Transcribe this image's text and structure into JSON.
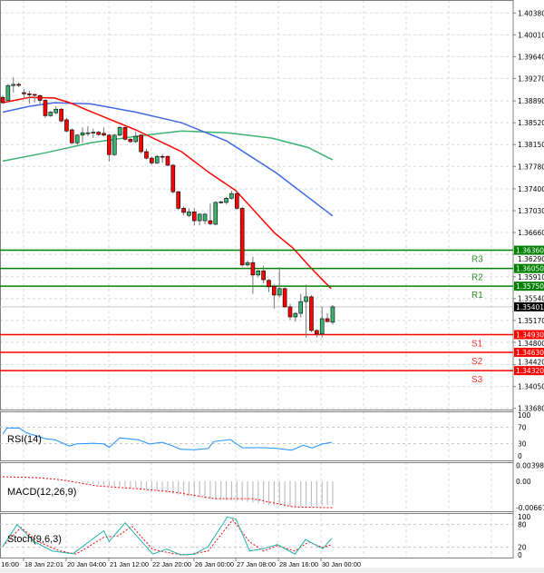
{
  "chart_data": {
    "type": "candlestick",
    "ylim": [
      1.3366,
      1.406
    ],
    "y_ticks": [
      "1.40380",
      "1.40010",
      "1.39640",
      "1.39270",
      "1.38890",
      "1.38520",
      "1.38150",
      "1.37780",
      "1.37400",
      "1.37030",
      "1.36660",
      "1.36290",
      "1.35910",
      "1.35540",
      "1.35170",
      "1.34800",
      "1.34420",
      "1.34050",
      "1.33680"
    ],
    "x_ticks": [
      "16:00",
      "18 Jan 22:01",
      "20 Jan 04:00",
      "21 Jan 12:00",
      "22 Jan 20:00",
      "26 Jan 00:00",
      "27 Jan 08:00",
      "28 Jan 16:00",
      "30 Jan 00:00"
    ],
    "grid": true,
    "colors": {
      "bull": "#3cb371",
      "bear": "#ff0000",
      "ma_fast": "#ff0000",
      "ma_mid": "#4169e1",
      "ma_slow": "#3cb371",
      "resistance": "#008000",
      "support": "#ff0000",
      "rsi": "#1e90ff",
      "macd_signal": "#ff0000",
      "macd_hist": "#c0c0c0",
      "stoch_main": "#20b2aa",
      "stoch_signal": "#ff0000"
    },
    "candles_ohlc": [
      [
        1.3895,
        1.3898,
        1.3884,
        1.3886
      ],
      [
        1.389,
        1.3918,
        1.3886,
        1.3915
      ],
      [
        1.3915,
        1.3929,
        1.3903,
        1.3917
      ],
      [
        1.3917,
        1.392,
        1.3912,
        1.3916
      ],
      [
        1.3903,
        1.3909,
        1.3892,
        1.3901
      ],
      [
        1.3901,
        1.3906,
        1.3884,
        1.39
      ],
      [
        1.39,
        1.3901,
        1.3886,
        1.3899
      ],
      [
        1.3898,
        1.39,
        1.3884,
        1.389
      ],
      [
        1.389,
        1.3892,
        1.386,
        1.3864
      ],
      [
        1.3864,
        1.3872,
        1.3862,
        1.387
      ],
      [
        1.3869,
        1.388,
        1.3866,
        1.3875
      ],
      [
        1.3875,
        1.3877,
        1.3853,
        1.3855
      ],
      [
        1.3857,
        1.386,
        1.3836,
        1.3838
      ],
      [
        1.384,
        1.3842,
        1.3816,
        1.3818
      ],
      [
        1.3818,
        1.3833,
        1.3815,
        1.3831
      ],
      [
        1.3831,
        1.3844,
        1.3818,
        1.3835
      ],
      [
        1.3835,
        1.3846,
        1.3829,
        1.3835
      ],
      [
        1.3835,
        1.3842,
        1.3826,
        1.3836
      ],
      [
        1.3836,
        1.3838,
        1.383,
        1.3832
      ],
      [
        1.3834,
        1.3844,
        1.3829,
        1.3831
      ],
      [
        1.3831,
        1.3833,
        1.3786,
        1.3798
      ],
      [
        1.3798,
        1.3833,
        1.3796,
        1.3831
      ],
      [
        1.3831,
        1.3846,
        1.3829,
        1.3844
      ],
      [
        1.3844,
        1.3846,
        1.3822,
        1.3824
      ],
      [
        1.3824,
        1.3826,
        1.3818,
        1.382
      ],
      [
        1.382,
        1.3837,
        1.3818,
        1.3829
      ],
      [
        1.3831,
        1.3833,
        1.38,
        1.3803
      ],
      [
        1.3803,
        1.3808,
        1.379,
        1.3792
      ],
      [
        1.3792,
        1.3795,
        1.3781,
        1.3784
      ],
      [
        1.3784,
        1.3797,
        1.3782,
        1.3795
      ],
      [
        1.3795,
        1.3799,
        1.3784,
        1.3794
      ],
      [
        1.3795,
        1.3797,
        1.3778,
        1.378
      ],
      [
        1.378,
        1.3782,
        1.3732,
        1.3735
      ],
      [
        1.3735,
        1.3737,
        1.3704,
        1.3707
      ],
      [
        1.3707,
        1.371,
        1.3695,
        1.37
      ],
      [
        1.3695,
        1.3707,
        1.3692,
        1.3701
      ],
      [
        1.3701,
        1.3707,
        1.3678,
        1.3686
      ],
      [
        1.3686,
        1.3699,
        1.3678,
        1.3697
      ],
      [
        1.3686,
        1.3699,
        1.368,
        1.3697
      ],
      [
        1.3686,
        1.3715,
        1.3678,
        1.3681
      ],
      [
        1.368,
        1.3719,
        1.3678,
        1.3717
      ],
      [
        1.3717,
        1.372,
        1.3715,
        1.3718
      ],
      [
        1.3717,
        1.3726,
        1.3714,
        1.3724
      ],
      [
        1.3724,
        1.3737,
        1.3722,
        1.3732
      ],
      [
        1.3732,
        1.3735,
        1.3705,
        1.3707
      ],
      [
        1.3707,
        1.3709,
        1.3608,
        1.3611
      ],
      [
        1.3611,
        1.3618,
        1.3608,
        1.3615
      ],
      [
        1.3615,
        1.3625,
        1.3562,
        1.3594
      ],
      [
        1.3594,
        1.3603,
        1.359,
        1.3601
      ],
      [
        1.3601,
        1.361,
        1.358,
        1.3586
      ],
      [
        1.3585,
        1.3587,
        1.3565,
        1.3574
      ],
      [
        1.3575,
        1.3578,
        1.3537,
        1.356
      ],
      [
        1.356,
        1.3607,
        1.3556,
        1.3571
      ],
      [
        1.3571,
        1.3573,
        1.3538,
        1.354
      ],
      [
        1.354,
        1.3545,
        1.3518,
        1.3523
      ],
      [
        1.3523,
        1.3531,
        1.3515,
        1.3529
      ],
      [
        1.3529,
        1.3562,
        1.3522,
        1.3549
      ],
      [
        1.3549,
        1.3578,
        1.3488,
        1.3557
      ],
      [
        1.3557,
        1.356,
        1.3497,
        1.35
      ],
      [
        1.35,
        1.3502,
        1.3488,
        1.3494
      ],
      [
        1.3494,
        1.354,
        1.3488,
        1.352
      ],
      [
        1.352,
        1.3529,
        1.3514,
        1.3515
      ],
      [
        1.3514,
        1.3543,
        1.351,
        1.354
      ]
    ],
    "moving_averages": {
      "fast": [
        [
          0,
          1.3886
        ],
        [
          5.1,
          1.3895
        ],
        [
          9.7,
          1.3894
        ],
        [
          12.6,
          1.3886
        ],
        [
          16.5,
          1.3871
        ],
        [
          25,
          1.384
        ],
        [
          33.6,
          1.3803
        ],
        [
          38.7,
          1.3768
        ],
        [
          43.8,
          1.3737
        ],
        [
          51.1,
          1.3665
        ],
        [
          54.5,
          1.364
        ],
        [
          57.9,
          1.3606
        ],
        [
          61.7,
          1.3571
        ]
      ],
      "mid": [
        [
          0,
          1.387
        ],
        [
          5.1,
          1.388
        ],
        [
          9.7,
          1.3886
        ],
        [
          16.5,
          1.3884
        ],
        [
          25,
          1.387
        ],
        [
          33.6,
          1.3852
        ],
        [
          42.1,
          1.3821
        ],
        [
          51.4,
          1.3767
        ],
        [
          62,
          1.3694
        ]
      ],
      "slow": [
        [
          0,
          1.3787
        ],
        [
          8,
          1.3801
        ],
        [
          16.5,
          1.3818
        ],
        [
          25,
          1.3829
        ],
        [
          33.6,
          1.3838
        ],
        [
          42.1,
          1.3835
        ],
        [
          50.6,
          1.3826
        ],
        [
          57.4,
          1.381
        ],
        [
          62,
          1.3789
        ]
      ]
    },
    "pivots": [
      {
        "label": "R3",
        "value": 1.3636,
        "tag": "1.36360",
        "kind": "resistance"
      },
      {
        "label": "R2",
        "value": 1.3605,
        "tag": "1.36050",
        "kind": "resistance"
      },
      {
        "label": "R1",
        "value": 1.3575,
        "tag": "1.35750",
        "kind": "resistance"
      },
      {
        "label": "S1",
        "value": 1.3493,
        "tag": "1.34930",
        "kind": "support"
      },
      {
        "label": "S2",
        "value": 1.3463,
        "tag": "1.34630",
        "kind": "support"
      },
      {
        "label": "S3",
        "value": 1.3432,
        "tag": "1.34320",
        "kind": "support"
      }
    ],
    "last_price": {
      "value": 1.35401,
      "tag": "1.35401"
    },
    "rsi": {
      "label": "RSI(14)",
      "ticks": [
        "100",
        "70",
        "30",
        "0"
      ],
      "levels": [
        70,
        30
      ],
      "points": [
        [
          0,
          53
        ],
        [
          0.8,
          68
        ],
        [
          3.1,
          68
        ],
        [
          4.4,
          57
        ],
        [
          8,
          42
        ],
        [
          9.9,
          39
        ],
        [
          12.5,
          24
        ],
        [
          13.8,
          29
        ],
        [
          17,
          31
        ],
        [
          19,
          29
        ],
        [
          20,
          21
        ],
        [
          22,
          44
        ],
        [
          25.6,
          39
        ],
        [
          27.5,
          29
        ],
        [
          30,
          33
        ],
        [
          32,
          24
        ],
        [
          33.4,
          16
        ],
        [
          36,
          15
        ],
        [
          38.6,
          18
        ],
        [
          39.6,
          35
        ],
        [
          42.8,
          40
        ],
        [
          45,
          20
        ],
        [
          49,
          20
        ],
        [
          51.6,
          18
        ],
        [
          54.3,
          14
        ],
        [
          56.5,
          26
        ],
        [
          58.1,
          19
        ],
        [
          60.1,
          29
        ],
        [
          61.8,
          33
        ]
      ]
    },
    "macd": {
      "label": "MACD(12,26,9)",
      "ticks": [
        "0.003981",
        "0.00",
        "-0.006679"
      ],
      "histogram": [
        [
          13,
          0
        ],
        [
          19,
          -0.001
        ],
        [
          27,
          -0.002
        ],
        [
          33.4,
          -0.0035
        ],
        [
          38.6,
          -0.0045
        ],
        [
          45,
          -0.005
        ],
        [
          50,
          -0.006
        ],
        [
          55.5,
          -0.0065
        ],
        [
          62,
          -0.006
        ]
      ],
      "signal": [
        [
          0,
          0.00115
        ],
        [
          6.7,
          0.00092
        ],
        [
          11,
          0.00038
        ],
        [
          17.6,
          -0.00115
        ],
        [
          25.4,
          -0.00192
        ],
        [
          32,
          -0.0027
        ],
        [
          39.8,
          -0.0044
        ],
        [
          46.9,
          -0.0044
        ],
        [
          54.6,
          -0.0065
        ],
        [
          62,
          -0.0067
        ]
      ]
    },
    "stochastic": {
      "label": "Stoch(9,6,3)",
      "ticks": [
        "100",
        "80",
        "20",
        "0"
      ],
      "levels": [
        80,
        20
      ],
      "main": [
        [
          0,
          22
        ],
        [
          2.7,
          79
        ],
        [
          6,
          34
        ],
        [
          9.3,
          10
        ],
        [
          13.2,
          3
        ],
        [
          19,
          63
        ],
        [
          20,
          35
        ],
        [
          23,
          84
        ],
        [
          28.2,
          2
        ],
        [
          30.8,
          15
        ],
        [
          33.4,
          0
        ],
        [
          36,
          2
        ],
        [
          38.6,
          22
        ],
        [
          42.2,
          99
        ],
        [
          43.8,
          94
        ],
        [
          46.4,
          10
        ],
        [
          49,
          16
        ],
        [
          51.6,
          27
        ],
        [
          54.9,
          2
        ],
        [
          56.9,
          40
        ],
        [
          60.1,
          16
        ],
        [
          61.8,
          43
        ]
      ],
      "signal": [
        [
          0,
          22
        ],
        [
          3.4,
          72
        ],
        [
          6.7,
          34
        ],
        [
          10.6,
          11
        ],
        [
          13.8,
          2
        ],
        [
          19,
          46
        ],
        [
          21.7,
          50
        ],
        [
          24.3,
          75
        ],
        [
          28.2,
          14
        ],
        [
          32.1,
          3
        ],
        [
          34.7,
          0
        ],
        [
          38.6,
          10
        ],
        [
          43.2,
          92
        ],
        [
          46.4,
          34
        ],
        [
          49,
          10
        ],
        [
          51.6,
          24
        ],
        [
          54.9,
          10
        ],
        [
          57.5,
          34
        ],
        [
          60.1,
          19
        ],
        [
          61.8,
          27
        ]
      ]
    }
  }
}
